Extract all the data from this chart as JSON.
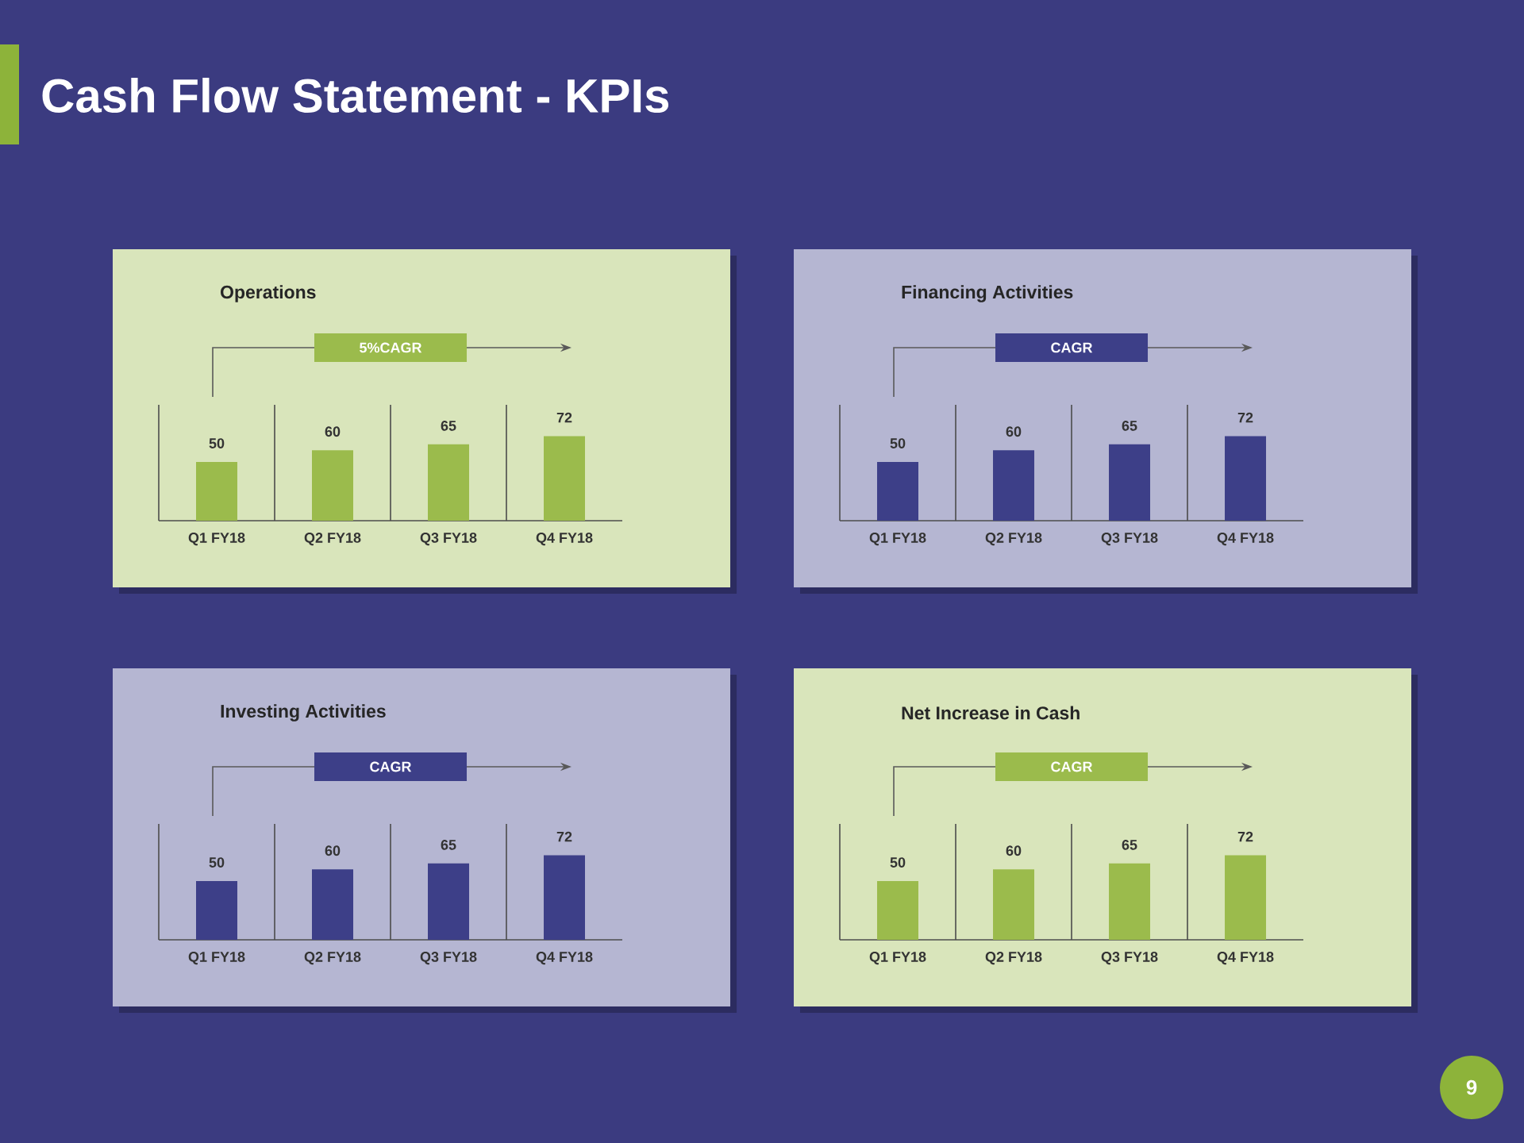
{
  "chart_data": [
    {
      "type": "other",
      "title": "Cash Flow Statement - KPIs",
      "annotations": [
        "9"
      ]
    },
    {
      "type": "bar",
      "title": "Operations",
      "categories": [
        "Q1 FY18",
        "Q2 FY18",
        "Q3 FY18",
        "Q4 FY18"
      ],
      "values": [
        50,
        60,
        65,
        72
      ],
      "color": "#9bbb4c",
      "data_labels": true,
      "grid": "x",
      "annotations": [
        "5%CAGR"
      ]
    },
    {
      "type": "bar",
      "title": "Financing Activities",
      "categories": [
        "Q1 FY18",
        "Q2 FY18",
        "Q3 FY18",
        "Q4 FY18"
      ],
      "values": [
        50,
        60,
        65,
        72
      ],
      "color": "#3d3f88",
      "data_labels": true,
      "grid": "x",
      "annotations": [
        "CAGR"
      ]
    },
    {
      "type": "bar",
      "title": "Investing Activities",
      "categories": [
        "Q1 FY18",
        "Q2 FY18",
        "Q3 FY18",
        "Q4 FY18"
      ],
      "values": [
        50,
        60,
        65,
        72
      ],
      "color": "#3d3f88",
      "data_labels": true,
      "grid": "x",
      "annotations": [
        "CAGR"
      ]
    },
    {
      "type": "bar",
      "title": "Net Increase in Cash",
      "categories": [
        "Q1 FY18",
        "Q2 FY18",
        "Q3 FY18",
        "Q4 FY18"
      ],
      "values": [
        50,
        60,
        65,
        72
      ],
      "color": "#9bbb4c",
      "data_labels": true,
      "grid": "x",
      "annotations": [
        "CAGR"
      ]
    }
  ]
}
